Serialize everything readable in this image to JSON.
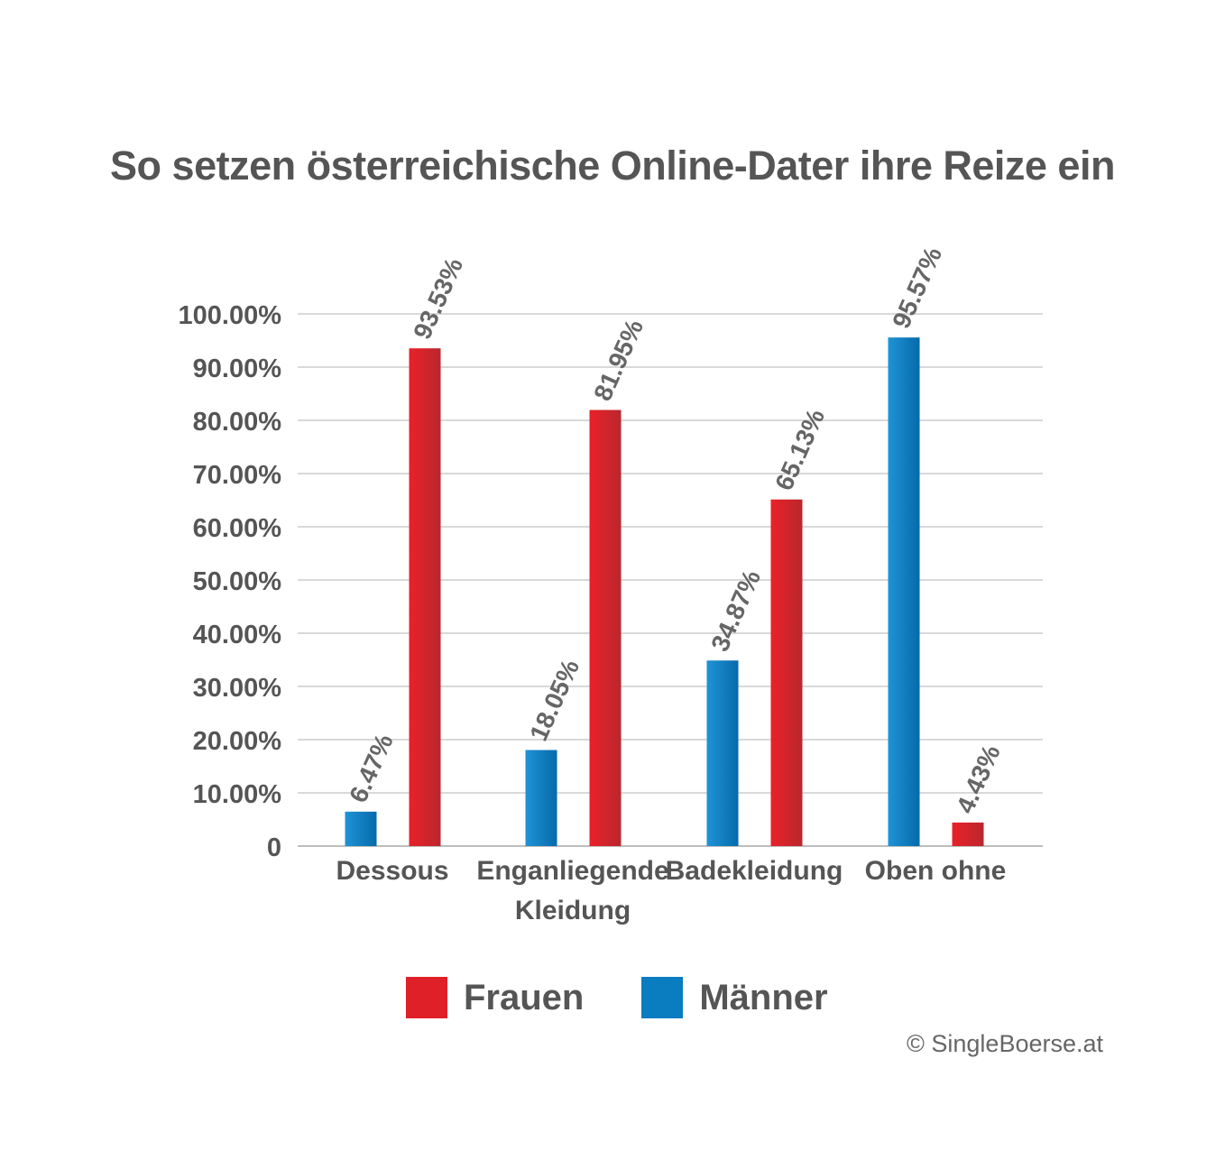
{
  "chart_data": {
    "type": "bar",
    "title": "So setzen österreichische Online-Dater ihre Reize ein",
    "xlabel": "",
    "ylabel": "",
    "ylim": [
      0,
      100
    ],
    "yticks": [
      "0",
      "10.00%",
      "20.00%",
      "30.00%",
      "40.00%",
      "50.00%",
      "60.00%",
      "70.00%",
      "80.00%",
      "90.00%",
      "100.00%"
    ],
    "grid": true,
    "legend_position": "bottom",
    "categories": [
      [
        "Dessous"
      ],
      [
        "Enganliegende",
        "Kleidung"
      ],
      [
        "Badekleidung"
      ],
      [
        "Oben ohne"
      ]
    ],
    "series": [
      {
        "name": "Männer",
        "color": "#0a7cc0",
        "values": [
          6.47,
          18.05,
          34.87,
          95.57
        ],
        "labels": [
          "6.47%",
          "18.05%",
          "34.87%",
          "95.57%"
        ]
      },
      {
        "name": "Frauen",
        "color": "#e02028",
        "values": [
          93.53,
          81.95,
          65.13,
          4.43
        ],
        "labels": [
          "93.53%",
          "81.95%",
          "65.13%",
          "4.43%"
        ]
      }
    ]
  },
  "legend": {
    "items": [
      {
        "label": "Frauen",
        "color": "#e02028"
      },
      {
        "label": "Männer",
        "color": "#0a7cc0"
      }
    ]
  },
  "footer": {
    "copyright": "© SingleBoerse.at"
  }
}
